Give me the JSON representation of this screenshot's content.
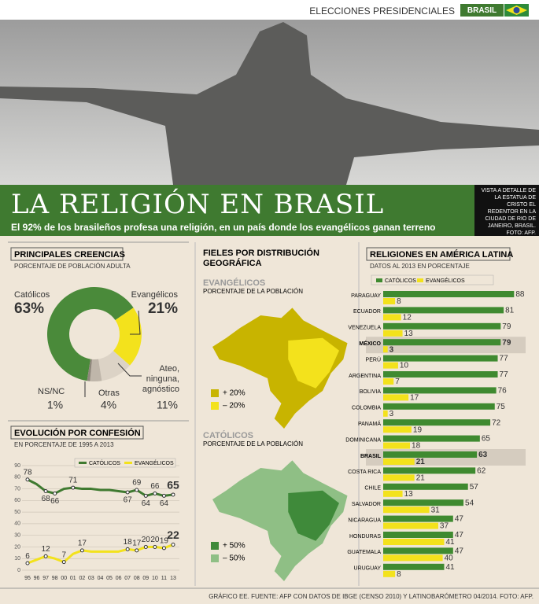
{
  "header": {
    "section": "ELECCIONES PRESIDENCIALES",
    "country": "BRASIL"
  },
  "title": "LA RELIGIÓN EN BRASIL",
  "subtitle": "El 92% de los brasileños profesa una religión, en un país donde los evangélicos ganan terreno",
  "photo_caption": "VISTA A DETALLE DE LA ESTATUA DE CRISTO EL REDENTOR EN LA CIUDAD DE RIO DE JANEIRO, BRASIL. FOTO: AFP.",
  "footer": "GRÁFICO EE. FUENTE: AFP CON DATOS DE IBGE (CENSO 2010) Y LATINOBARÓMETRO 04/2014. FOTO: AFP.",
  "maps": {
    "title": "FIELES POR DISTRIBUCIÓN GEOGRÁFICA",
    "panels": [
      {
        "name": "EVANGÉLICOS",
        "subtitle": "PORCENTAJE DE LA POBLACIÓN",
        "legend": [
          "+ 20%",
          "– 20%"
        ],
        "colors": [
          "#c8b400",
          "#f3e21c"
        ]
      },
      {
        "name": "CATÓLICOS",
        "subtitle": "PORCENTAJE DE LA POBLACIÓN",
        "legend": [
          "+ 50%",
          "– 50%"
        ],
        "colors": [
          "#3f8a3a",
          "#8fbf85"
        ]
      }
    ]
  },
  "chart_data": [
    {
      "type": "donut",
      "title": "PRINCIPALES CREENCIAS",
      "subtitle": "PORCENTAJE DE POBLACIÓN ADULTA",
      "categories": [
        "Católicos",
        "Evangélicos",
        "Ateo, ninguna, agnóstico",
        "Otras",
        "NS/NC"
      ],
      "values": [
        63,
        21,
        11,
        4,
        1
      ],
      "value_labels": [
        "63%",
        "21%",
        "11%",
        "4%",
        "1%"
      ],
      "colors": [
        "#4a8a3a",
        "#f3e21c",
        "#dcd3c6",
        "#bfb6aa",
        "#8f877c"
      ]
    },
    {
      "type": "line",
      "title": "EVOLUCIÓN POR CONFESIÓN",
      "subtitle": "EN PORCENTAJE DE 1995 A 2013",
      "categories": [
        "95",
        "96",
        "97",
        "98",
        "00",
        "01",
        "02",
        "03",
        "04",
        "05",
        "06",
        "07",
        "08",
        "09",
        "10",
        "11",
        "13"
      ],
      "series": [
        {
          "name": "CATÓLICOS",
          "color": "#3f7a30",
          "values": [
            78,
            74,
            68,
            66,
            70,
            71,
            70,
            70,
            69,
            69,
            68,
            67,
            69,
            64,
            66,
            64,
            65
          ],
          "value_labels": [
            "78",
            null,
            "68",
            "66",
            null,
            "71",
            null,
            null,
            null,
            null,
            null,
            "67",
            "69",
            "64",
            "66",
            "64",
            "65"
          ]
        },
        {
          "name": "EVANGÉLICOS",
          "color": "#f3e21c",
          "values": [
            6,
            9,
            12,
            10,
            7,
            14,
            17,
            16,
            16,
            16,
            16,
            18,
            17,
            20,
            20,
            19,
            22
          ],
          "value_labels": [
            "6",
            null,
            "12",
            null,
            "7",
            null,
            "17",
            null,
            null,
            null,
            null,
            "18",
            "17",
            "20",
            "20",
            "19",
            "22"
          ]
        }
      ],
      "ylim": [
        0,
        90
      ],
      "yticks": [
        0,
        10,
        20,
        30,
        40,
        50,
        60,
        70,
        80,
        90
      ],
      "grid": true
    },
    {
      "type": "bar",
      "orientation": "horizontal",
      "title": "RELIGIONES EN AMÉRICA LATINA",
      "subtitle": "DATOS AL 2013 EN PORCENTAJE",
      "categories": [
        "PARAGUAY",
        "ECUADOR",
        "VENEZUELA",
        "MÉXICO",
        "PERÚ",
        "ARGENTINA",
        "BOLIVIA",
        "COLOMBIA",
        "PANAMÁ",
        "DOMINICANA",
        "BRASIL",
        "COSTA RICA",
        "CHILE",
        "SALVADOR",
        "NICARAGUA",
        "HONDURAS",
        "GUATEMALA",
        "URUGUAY"
      ],
      "series": [
        {
          "name": "CATÓLICOS",
          "color": "#3f8a30",
          "values": [
            88,
            81,
            79,
            79,
            77,
            77,
            76,
            75,
            72,
            65,
            63,
            62,
            57,
            54,
            47,
            47,
            47,
            41
          ]
        },
        {
          "name": "EVANGÉLICOS",
          "color": "#f3e21c",
          "values": [
            8,
            12,
            13,
            3,
            10,
            7,
            17,
            3,
            19,
            18,
            21,
            21,
            13,
            31,
            37,
            41,
            40,
            8
          ]
        }
      ],
      "highlight": [
        3,
        10
      ]
    }
  ]
}
